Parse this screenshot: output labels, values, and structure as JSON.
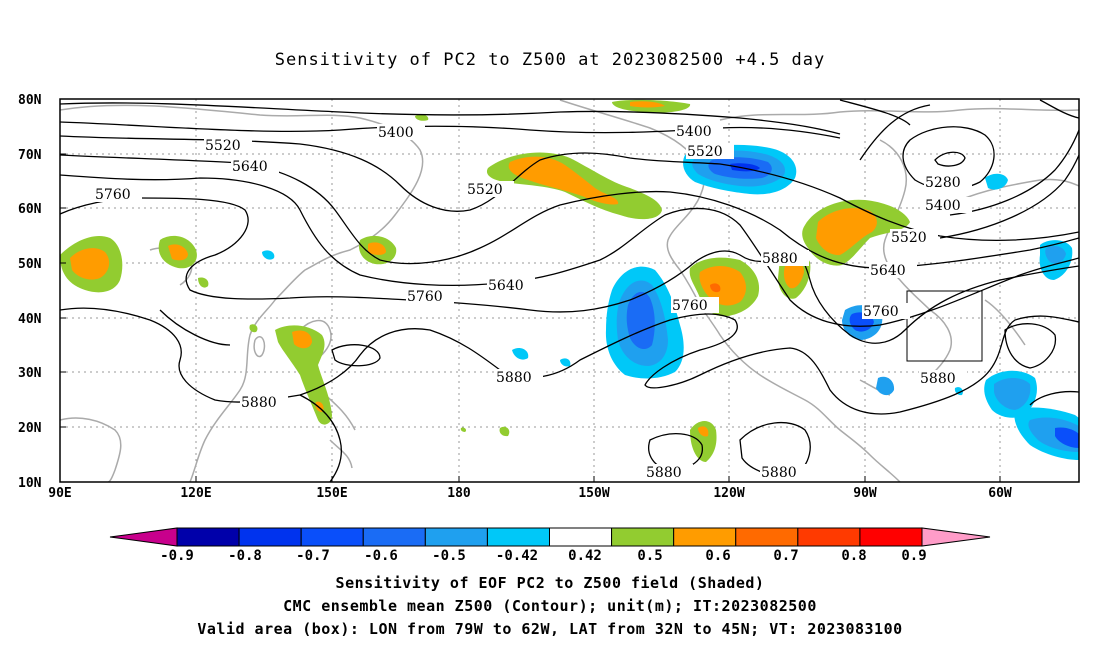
{
  "title": "Sensitivity of PC2 to Z500 at 2023082500 +4.5 day",
  "lat_labels": [
    "80N",
    "70N",
    "60N",
    "50N",
    "40N",
    "30N",
    "20N",
    "10N"
  ],
  "lon_labels": [
    "90E",
    "120E",
    "150E",
    "180",
    "150W",
    "120W",
    "90W",
    "60W"
  ],
  "contour_labels": [
    "5400",
    "5400",
    "5520",
    "5520",
    "5520",
    "5520",
    "5640",
    "5640",
    "5640",
    "5760",
    "5760",
    "5760",
    "5760",
    "5880",
    "5880",
    "5880",
    "5880",
    "5880",
    "5880",
    "5880",
    "5280",
    "5400"
  ],
  "colorbar": {
    "labels": [
      "-0.9",
      "-0.8",
      "-0.7",
      "-0.6",
      "-0.5",
      "-0.42",
      "0.42",
      "0.5",
      "0.6",
      "0.7",
      "0.8",
      "0.9"
    ],
    "colors": [
      "#0000aa",
      "#0033ee",
      "#0a4ffa",
      "#1a6cf5",
      "#1fa0ef",
      "#00c8f8",
      "#ffffff",
      "#92cc30",
      "#ff9c00",
      "#ff6a00",
      "#ff3a00",
      "#ff0000"
    ],
    "low_end_color": "#c8008c",
    "high_end_color": "#ff9cc8"
  },
  "captions": [
    "Sensitivity of EOF PC2 to Z500 field (Shaded)",
    "CMC ensemble mean Z500 (Contour); unit(m); IT:2023082500",
    "Valid area (box): LON from 79W to 62W, LAT from 32N to 45N; VT: 2023083100"
  ]
}
